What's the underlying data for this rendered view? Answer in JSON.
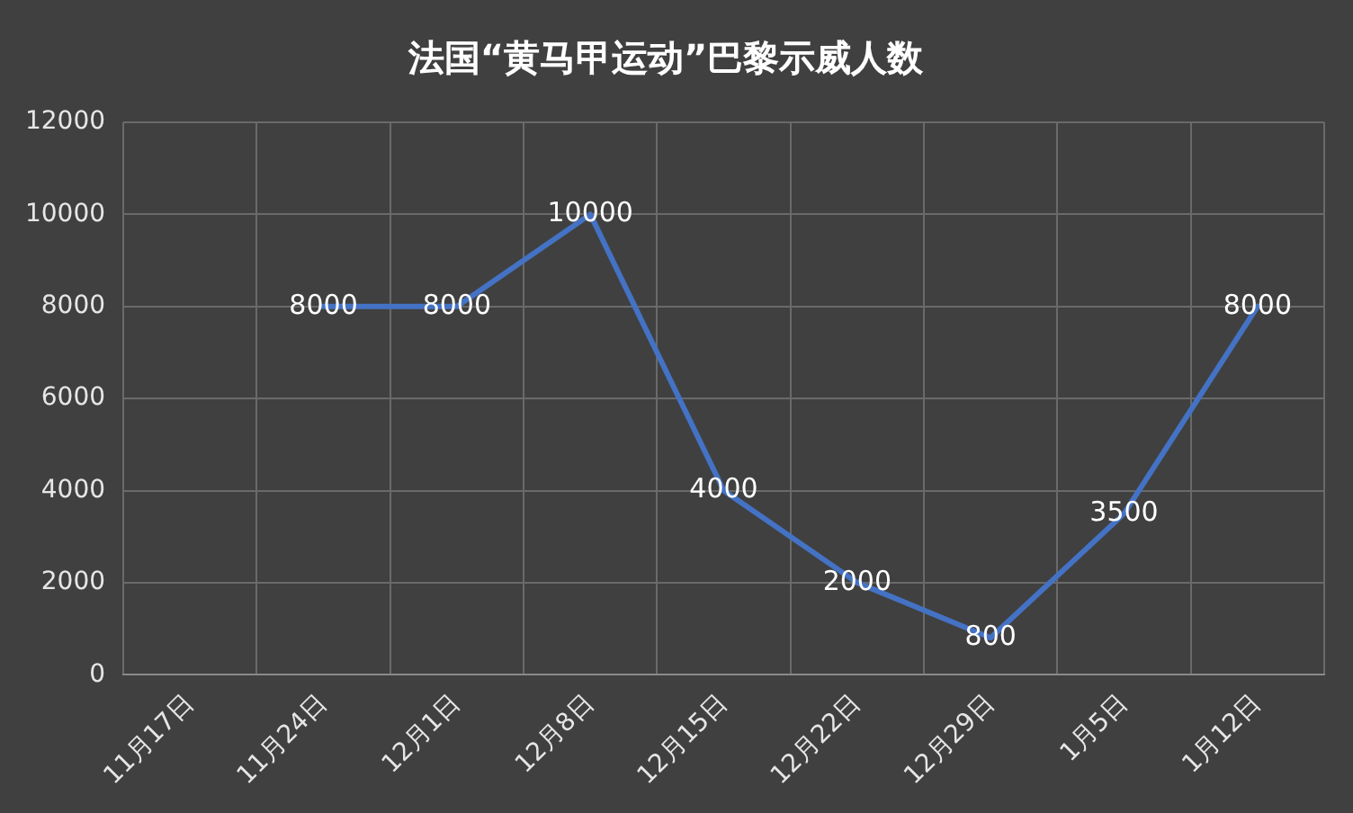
{
  "chart_data": {
    "type": "line",
    "title": "法国“黄马甲运动”巴黎示威人数",
    "categories": [
      "11月17日",
      "11月24日",
      "12月1日",
      "12月8日",
      "12月15日",
      "12月22日",
      "12月29日",
      "1月5日",
      "1月12日"
    ],
    "series": [
      {
        "color": "#4472c4",
        "values": [
          null,
          8000,
          8000,
          10000,
          4000,
          2000,
          800,
          3500,
          8000
        ]
      }
    ],
    "ylim": [
      0,
      12000
    ],
    "yticks": [
      0,
      2000,
      4000,
      6000,
      8000,
      10000,
      12000
    ],
    "grid": true,
    "legend": false,
    "marker": "none",
    "data_labels": true
  }
}
